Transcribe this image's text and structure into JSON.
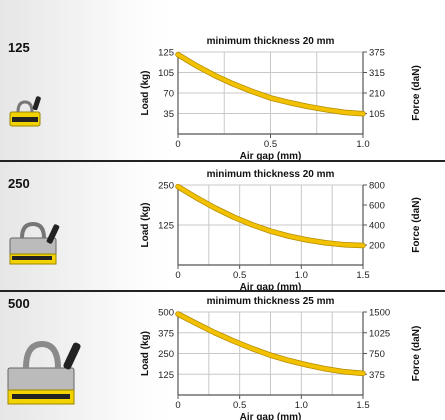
{
  "colors": {
    "curve": "#f2c100",
    "curve_edge": "#b38a00",
    "grid": "#c8c8c8",
    "axis": "#555555",
    "magnet_yellow": "#f2d200"
  },
  "icons": [
    "magnet-lifter-icon"
  ],
  "chart_data": [
    {
      "type": "line",
      "model": "125",
      "title": "minimum thickness 20 mm",
      "xlabel": "Air gap (mm)",
      "ylabel": "Load (kg)",
      "ylabel_right": "Force (daN)",
      "xlim": [
        0,
        1.0
      ],
      "ylim": [
        0,
        125
      ],
      "x_ticks": [
        "0",
        "0.5",
        "1.0"
      ],
      "y_ticks": [
        "125",
        "105",
        "70",
        "35"
      ],
      "y_ticks_right": [
        "375",
        "315",
        "210",
        "105"
      ],
      "grid": true,
      "series": [
        {
          "x": [
            0,
            0.1,
            0.2,
            0.3,
            0.4,
            0.5,
            0.6,
            0.7,
            0.8,
            0.9,
            1.0
          ],
          "y": [
            121,
            104,
            89,
            76,
            65,
            55,
            48,
            42,
            37,
            33,
            31
          ]
        }
      ]
    },
    {
      "type": "line",
      "model": "250",
      "title": "minimum thickness 20 mm",
      "xlabel": "Air gap (mm)",
      "ylabel": "Load (kg)",
      "ylabel_right": "Force (daN)",
      "xlim": [
        0,
        1.5
      ],
      "ylim": [
        0,
        250
      ],
      "x_ticks": [
        "0",
        "0.5",
        "1.0",
        "1.5"
      ],
      "y_ticks": [
        "250",
        "125"
      ],
      "y_ticks_right": [
        "800",
        "600",
        "400",
        "200"
      ],
      "grid": true,
      "series": [
        {
          "x": [
            0,
            0.15,
            0.3,
            0.45,
            0.6,
            0.75,
            0.9,
            1.05,
            1.2,
            1.35,
            1.5
          ],
          "y": [
            245,
            210,
            178,
            150,
            126,
            106,
            90,
            78,
            69,
            63,
            61
          ]
        }
      ]
    },
    {
      "type": "line",
      "model": "500",
      "title": "minimum thickness 25 mm",
      "xlabel": "Air gap (mm)",
      "ylabel": "Load (kg)",
      "ylabel_right": "Force (daN)",
      "xlim": [
        0,
        1.5
      ],
      "ylim": [
        0,
        500
      ],
      "x_ticks": [
        "0",
        "0.5",
        "1.0",
        "1.5"
      ],
      "y_ticks": [
        "500",
        "375",
        "250",
        "125"
      ],
      "y_ticks_right": [
        "1500",
        "1025",
        "750",
        "375"
      ],
      "grid": true,
      "series": [
        {
          "x": [
            0,
            0.15,
            0.3,
            0.45,
            0.6,
            0.75,
            0.9,
            1.05,
            1.2,
            1.35,
            1.5
          ],
          "y": [
            488,
            430,
            375,
            325,
            280,
            240,
            207,
            180,
            157,
            140,
            130
          ]
        }
      ]
    }
  ]
}
